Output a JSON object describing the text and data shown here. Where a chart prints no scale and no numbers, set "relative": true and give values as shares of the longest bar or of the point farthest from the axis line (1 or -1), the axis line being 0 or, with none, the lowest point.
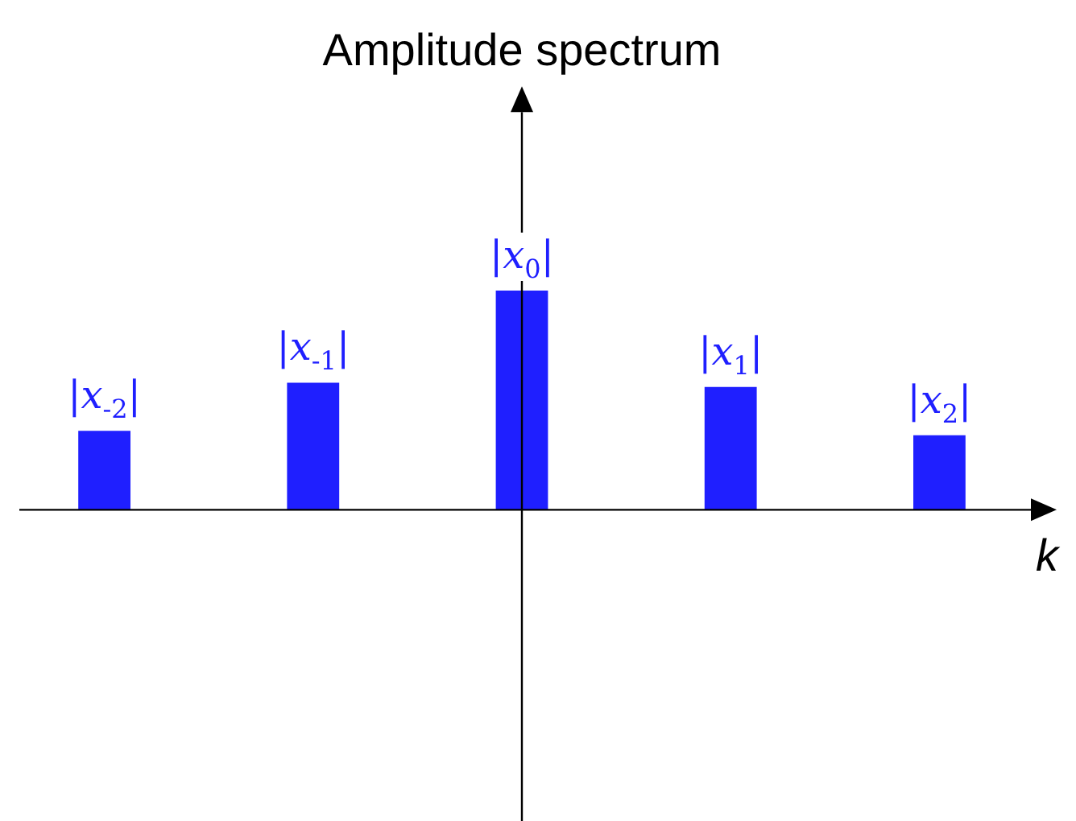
{
  "chart_data": {
    "type": "bar",
    "title": "Amplitude spectrum",
    "xlabel": "k",
    "relative": true,
    "categories": [
      "|x$_{-2}$|",
      "|x$_{-1}$|",
      "|x$_{0}$|",
      "|x$_{1}$|",
      "|x$_{2}$|"
    ],
    "values": [
      0.36,
      0.58,
      1,
      0.56,
      0.34
    ],
    "color": "#1f1fff",
    "legend": false
  }
}
